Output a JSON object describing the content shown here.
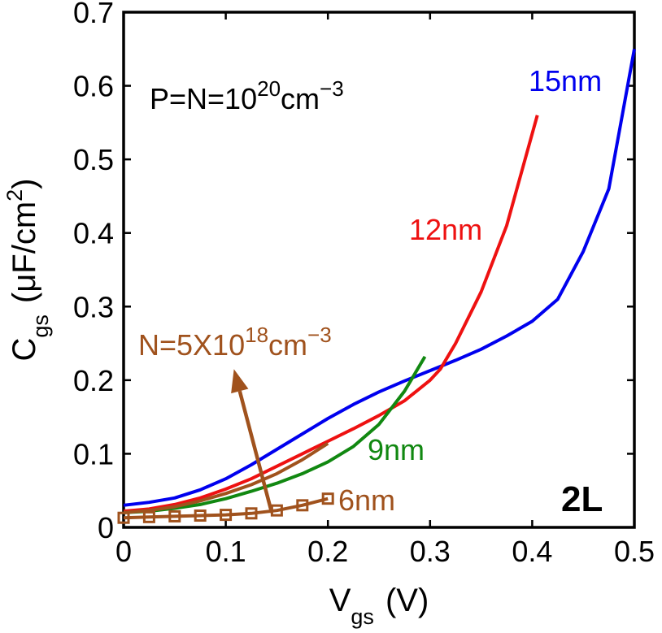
{
  "chart_data": {
    "type": "line",
    "xlabel": {
      "main": "V",
      "sub": "gs",
      "unit": "(V)"
    },
    "ylabel": {
      "main": "C",
      "sub": "gs",
      "unit_prefix": "(μF/cm",
      "unit_sup": "2",
      "unit_suffix": ")"
    },
    "xlim": [
      0,
      0.5
    ],
    "ylim": [
      0,
      0.7
    ],
    "xticks": [
      0,
      0.1,
      0.2,
      0.3,
      0.4,
      0.5
    ],
    "xtick_labels": [
      "0",
      "0.1",
      "0.2",
      "0.3",
      "0.4",
      "0.5"
    ],
    "yticks": [
      0,
      0.1,
      0.2,
      0.3,
      0.4,
      0.5,
      0.6,
      0.7
    ],
    "ytick_labels": [
      "0",
      "0.1",
      "0.2",
      "0.3",
      "0.4",
      "0.5",
      "0.6",
      "0.7"
    ],
    "grid": false,
    "series": [
      {
        "name": "15nm",
        "color": "#0000ee",
        "marker": "none",
        "x": [
          0,
          0.025,
          0.05,
          0.075,
          0.1,
          0.125,
          0.15,
          0.175,
          0.2,
          0.225,
          0.25,
          0.275,
          0.3,
          0.325,
          0.35,
          0.375,
          0.4,
          0.425,
          0.45,
          0.475,
          0.5
        ],
        "y": [
          0.03,
          0.034,
          0.04,
          0.051,
          0.066,
          0.085,
          0.106,
          0.127,
          0.148,
          0.167,
          0.184,
          0.199,
          0.213,
          0.227,
          0.242,
          0.26,
          0.28,
          0.31,
          0.375,
          0.46,
          0.65
        ]
      },
      {
        "name": "12nm",
        "color": "#ee1111",
        "marker": "none",
        "x": [
          0,
          0.025,
          0.05,
          0.075,
          0.1,
          0.125,
          0.15,
          0.175,
          0.2,
          0.225,
          0.25,
          0.275,
          0.3,
          0.31,
          0.325,
          0.35,
          0.375,
          0.405
        ],
        "y": [
          0.022,
          0.025,
          0.031,
          0.04,
          0.052,
          0.066,
          0.083,
          0.1,
          0.117,
          0.134,
          0.152,
          0.172,
          0.2,
          0.215,
          0.25,
          0.32,
          0.41,
          0.56
        ]
      },
      {
        "name": "9nm",
        "color": "#118811",
        "marker": "none",
        "x": [
          0,
          0.025,
          0.05,
          0.075,
          0.1,
          0.125,
          0.15,
          0.175,
          0.2,
          0.225,
          0.25,
          0.275,
          0.295
        ],
        "y": [
          0.02,
          0.022,
          0.026,
          0.031,
          0.039,
          0.049,
          0.06,
          0.073,
          0.089,
          0.11,
          0.14,
          0.185,
          0.232
        ]
      },
      {
        "name": "N=5X10^18cm^-3",
        "color": "#a0521d",
        "marker": "none",
        "x": [
          0,
          0.025,
          0.05,
          0.075,
          0.1,
          0.125,
          0.15,
          0.175,
          0.2
        ],
        "y": [
          0.02,
          0.023,
          0.028,
          0.036,
          0.046,
          0.058,
          0.073,
          0.092,
          0.114
        ]
      },
      {
        "name": "6nm",
        "color": "#a0521d",
        "marker": "square",
        "x": [
          0,
          0.025,
          0.05,
          0.075,
          0.1,
          0.125,
          0.15,
          0.175,
          0.2
        ],
        "y": [
          0.013,
          0.014,
          0.015,
          0.016,
          0.017,
          0.019,
          0.023,
          0.03,
          0.039
        ]
      }
    ],
    "annotations": {
      "doping": {
        "prefix": "P=N=10",
        "sup1": "20",
        "mid": "cm",
        "sup2": "−3"
      },
      "n_doping": {
        "prefix": "N=5X10",
        "sup1": "18",
        "mid": "cm",
        "sup2": "−3"
      },
      "label_15nm": "15nm",
      "label_12nm": "12nm",
      "label_9nm": "9nm",
      "label_6nm": "6nm",
      "panel_tag": "2L"
    },
    "arrow": {
      "from": [
        0.145,
        0.02
      ],
      "to": [
        0.108,
        0.215
      ],
      "color": "#a0521d"
    }
  }
}
